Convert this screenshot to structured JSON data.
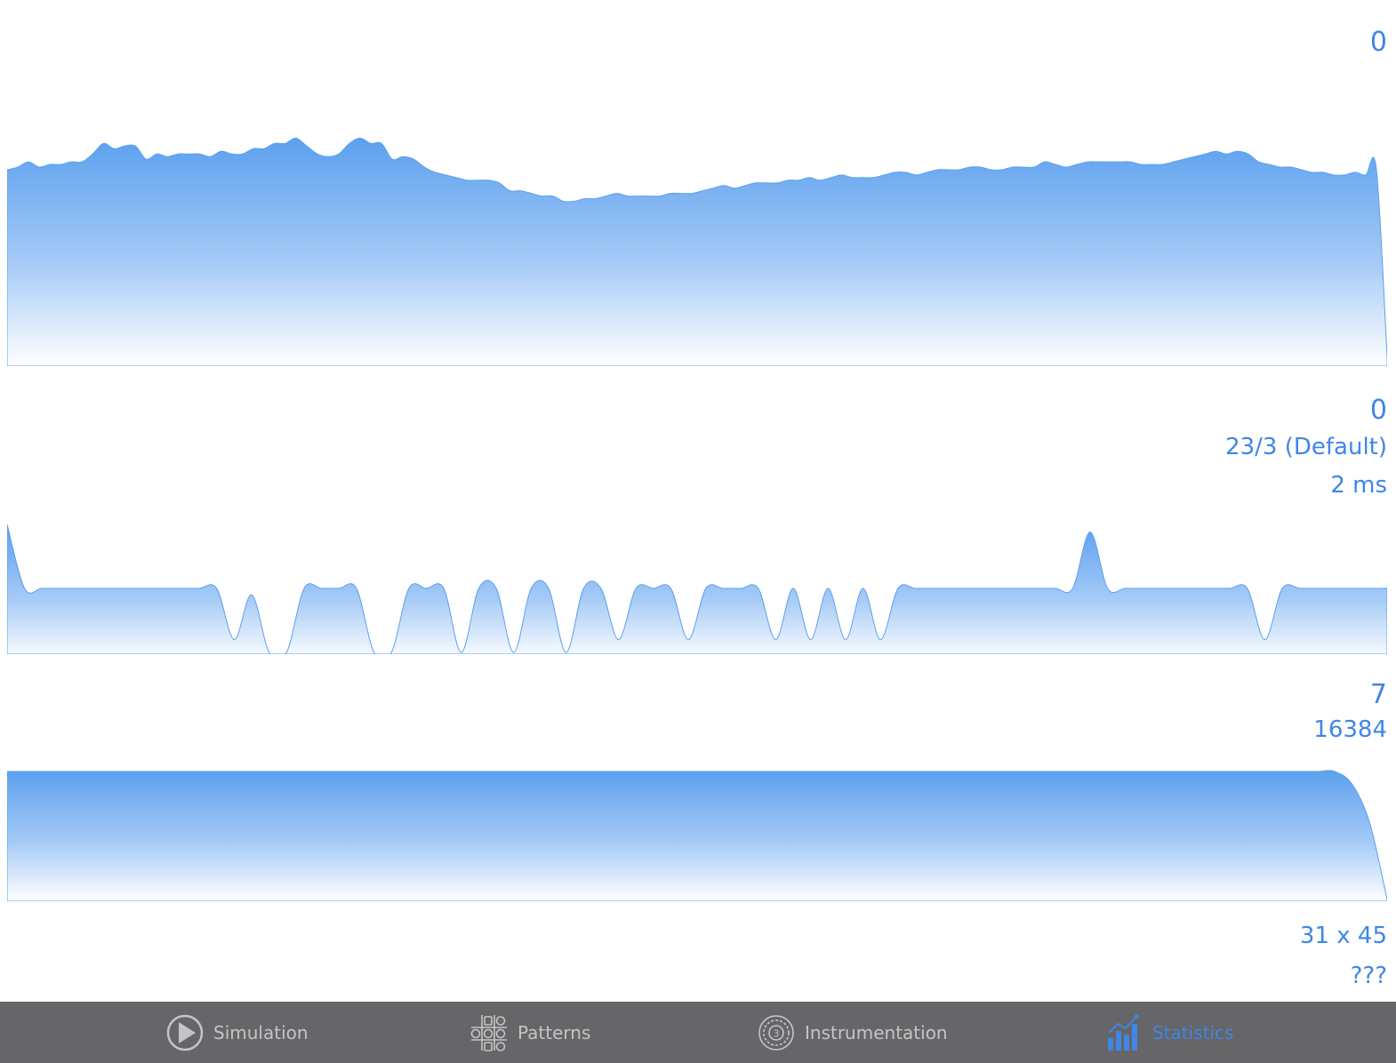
{
  "colors": {
    "accent": "#3f86e6",
    "chart_fill_top": "#5ca0ef",
    "tabbar_background": "#666567",
    "tab_inactive": "#c4c4c6"
  },
  "stats": {
    "population_max": "0",
    "population_min": "0",
    "rule": "23/3 (Default)",
    "generation_time": "2 ms",
    "cycle_value": "7",
    "cells_total": "16384",
    "grid_size": "31 x 45",
    "period": "???"
  },
  "tabs": [
    {
      "label": "Simulation",
      "icon": "play-icon",
      "active": false
    },
    {
      "label": "Patterns",
      "icon": "patterns-icon",
      "active": false
    },
    {
      "label": "Instrumentation",
      "icon": "instrumentation-icon",
      "active": false
    },
    {
      "label": "Statistics",
      "icon": "bar-chart-icon",
      "active": true
    }
  ],
  "chart_data": [
    {
      "type": "area",
      "series": [
        {
          "values": [
            0.74,
            0.75,
            0.77,
            0.75,
            0.76,
            0.76,
            0.77,
            0.77,
            0.8,
            0.84,
            0.82,
            0.83,
            0.83,
            0.78,
            0.8,
            0.79,
            0.8,
            0.8,
            0.8,
            0.79,
            0.81,
            0.8,
            0.8,
            0.82,
            0.82,
            0.84,
            0.84,
            0.86,
            0.83,
            0.8,
            0.79,
            0.8,
            0.84,
            0.86,
            0.84,
            0.84,
            0.78,
            0.79,
            0.78,
            0.75,
            0.73,
            0.72,
            0.71,
            0.7,
            0.7,
            0.7,
            0.69,
            0.66,
            0.66,
            0.65,
            0.64,
            0.64,
            0.62,
            0.62,
            0.63,
            0.63,
            0.64,
            0.65,
            0.64,
            0.64,
            0.64,
            0.64,
            0.65,
            0.65,
            0.65,
            0.66,
            0.67,
            0.68,
            0.67,
            0.68,
            0.69,
            0.69,
            0.69,
            0.7,
            0.7,
            0.71,
            0.7,
            0.71,
            0.72,
            0.71,
            0.71,
            0.71,
            0.72,
            0.73,
            0.73,
            0.72,
            0.73,
            0.74,
            0.74,
            0.74,
            0.75,
            0.75,
            0.74,
            0.74,
            0.75,
            0.75,
            0.75,
            0.77,
            0.76,
            0.75,
            0.76,
            0.77,
            0.77,
            0.77,
            0.77,
            0.77,
            0.76,
            0.76,
            0.76,
            0.77,
            0.78,
            0.79,
            0.8,
            0.81,
            0.8,
            0.81,
            0.8,
            0.77,
            0.76,
            0.75,
            0.75,
            0.74,
            0.73,
            0.73,
            0.72,
            0.72,
            0.73,
            0.72,
            0.74,
            0.03
          ]
        }
      ],
      "ylim": [
        0,
        1
      ]
    },
    {
      "type": "area",
      "series": [
        {
          "values": [
            1.0,
            0.5,
            0.5,
            0.5,
            0.5,
            0.5,
            0.5,
            0.5,
            0.5,
            0.5,
            0.5,
            0.5,
            0.5,
            0.1,
            0.45,
            0.0,
            0.0,
            0.5,
            0.5,
            0.5,
            0.5,
            0.0,
            0.0,
            0.5,
            0.5,
            0.5,
            0.0,
            0.5,
            0.5,
            0.0,
            0.5,
            0.5,
            0.0,
            0.5,
            0.5,
            0.1,
            0.5,
            0.5,
            0.5,
            0.1,
            0.5,
            0.5,
            0.5,
            0.5,
            0.1,
            0.5,
            0.1,
            0.5,
            0.1,
            0.5,
            0.1,
            0.5,
            0.5,
            0.5,
            0.5,
            0.5,
            0.5,
            0.5,
            0.5,
            0.5,
            0.5,
            0.5,
            0.94,
            0.5,
            0.5,
            0.5,
            0.5,
            0.5,
            0.5,
            0.5,
            0.5,
            0.5,
            0.1,
            0.5,
            0.5,
            0.5,
            0.5,
            0.5,
            0.5,
            0.5
          ]
        }
      ],
      "ylim": [
        0,
        1
      ]
    },
    {
      "type": "area",
      "series": [
        {
          "values": [
            1.0,
            1.0,
            1.0,
            1.0,
            1.0,
            1.0,
            1.0,
            1.0,
            1.0,
            1.0,
            1.0,
            1.0,
            1.0,
            1.0,
            1.0,
            1.0,
            1.0,
            1.0,
            1.0,
            1.0,
            1.0,
            1.0,
            1.0,
            1.0,
            1.0,
            1.0,
            1.0,
            1.0,
            1.0,
            1.0,
            1.0,
            1.0,
            1.0,
            1.0,
            1.0,
            1.0,
            1.0,
            1.0,
            1.0,
            1.0,
            1.0,
            1.0,
            1.0,
            1.0,
            1.0,
            1.0,
            1.0,
            1.0,
            1.0,
            1.0,
            1.0,
            1.0,
            1.0,
            1.0,
            1.0,
            1.0,
            1.0,
            1.0,
            1.0,
            1.0,
            1.0,
            1.0,
            1.0,
            1.0,
            1.0,
            1.0,
            1.0,
            1.0,
            1.0,
            1.0,
            1.0,
            1.0,
            1.0,
            1.0,
            1.0,
            1.0,
            1.0,
            0.9,
            0.6,
            0.0
          ]
        }
      ],
      "ylim": [
        0,
        1
      ]
    }
  ]
}
